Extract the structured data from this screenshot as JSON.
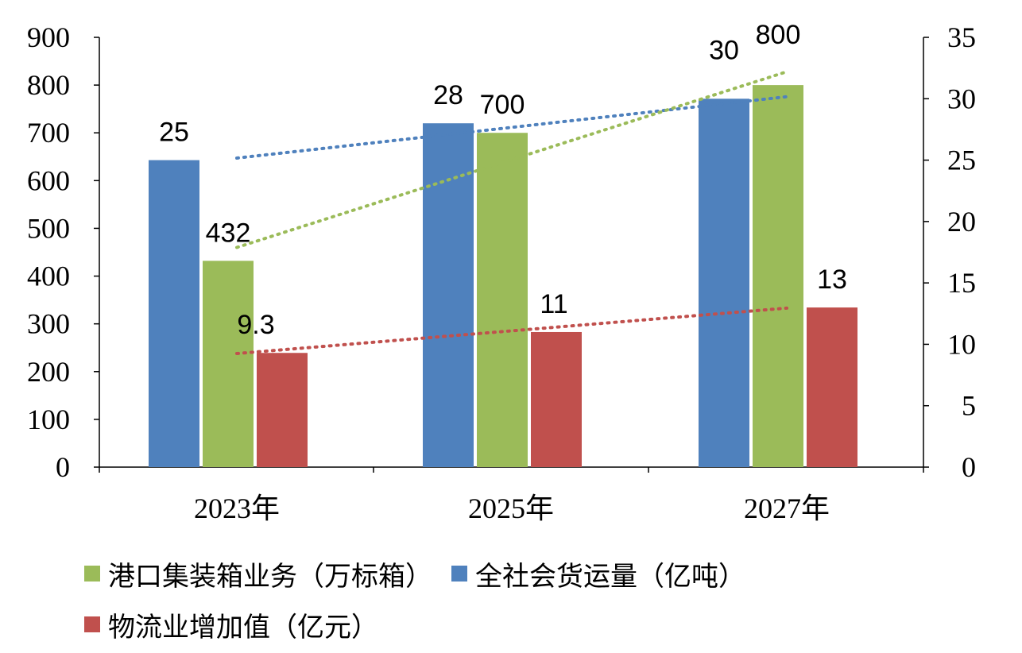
{
  "chart_data": {
    "type": "bar",
    "categories": [
      "2023年",
      "2025年",
      "2027年"
    ],
    "series": [
      {
        "name": "全社会货运量（亿吨）",
        "axis": "right",
        "color": "#4f81bd",
        "trend_color": "#4f81bd",
        "values": [
          25,
          28,
          30
        ],
        "labels": [
          "25",
          "28",
          "30"
        ]
      },
      {
        "name": "港口集装箱业务（万标箱）",
        "axis": "left",
        "color": "#9bbb59",
        "trend_color": "#9bbb59",
        "values": [
          432,
          700,
          800
        ],
        "labels": [
          "432",
          "700",
          "800"
        ]
      },
      {
        "name": "物流业增加值（亿元）",
        "axis": "right",
        "color": "#c0504d",
        "trend_color": "#c0504d",
        "values": [
          9.3,
          11,
          13
        ],
        "labels": [
          "9.3",
          "11",
          "13"
        ]
      }
    ],
    "left_axis": {
      "ylim": [
        0,
        900
      ],
      "ticks": [
        "0",
        "100",
        "200",
        "300",
        "400",
        "500",
        "600",
        "700",
        "800",
        "900"
      ]
    },
    "right_axis": {
      "ylim": [
        0,
        35
      ],
      "ticks": [
        "0",
        "5",
        "10",
        "15",
        "20",
        "25",
        "30",
        "35"
      ]
    },
    "trendlines": "linear, dotted",
    "grid": false,
    "legend_position": "bottom",
    "legend_order": [
      1,
      0,
      2
    ]
  }
}
